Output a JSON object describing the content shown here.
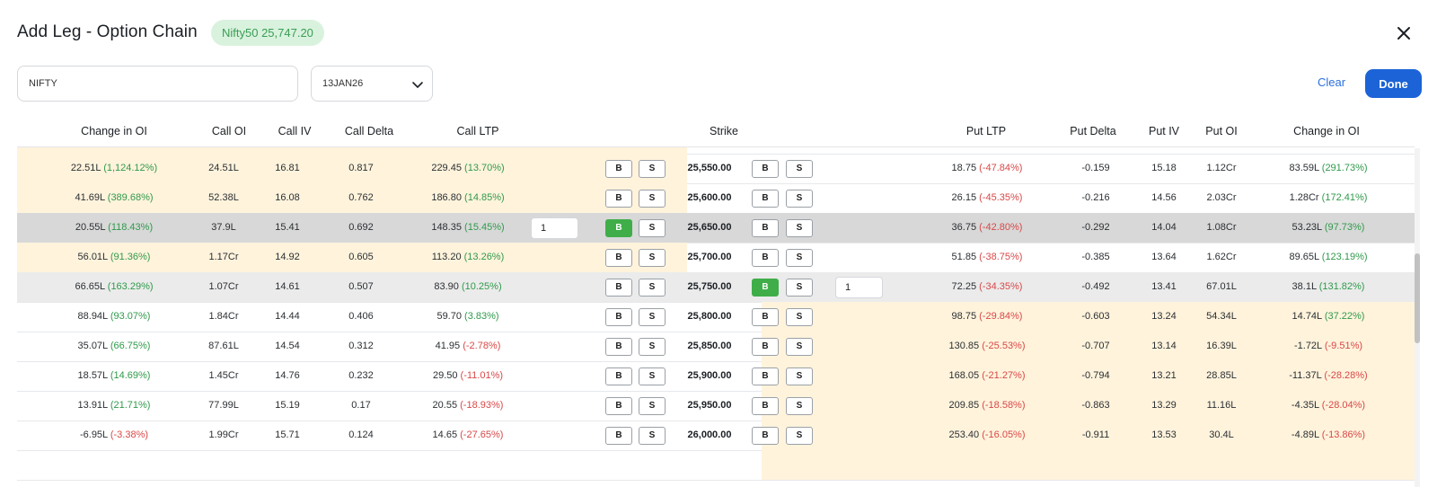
{
  "header": {
    "title": "Add Leg - Option Chain",
    "index_badge": "Nifty50 25,747.20"
  },
  "filters": {
    "symbol": "NIFTY",
    "expiry": "13JAN26"
  },
  "actions": {
    "clear_label": "Clear",
    "done_label": "Done"
  },
  "table": {
    "columns": [
      "Change in OI",
      "Call OI",
      "Call IV",
      "Call Delta",
      "Call LTP",
      "Strike",
      "Put LTP",
      "Put Delta",
      "Put IV",
      "Put OI",
      "Change in OI"
    ],
    "buy_label": "B",
    "sell_label": "S",
    "rows": [
      {
        "call_coi": "22.51L",
        "call_coi_pct": "(1,124.12%)",
        "call_oi": "24.51L",
        "call_iv": "16.81",
        "call_delta": "0.817",
        "call_ltp": "229.45",
        "call_ltp_pct": "(13.70%)",
        "strike": "25,550.00",
        "put_ltp": "18.75",
        "put_ltp_pct": "(-47.84%)",
        "put_delta": "-0.159",
        "put_iv": "15.18",
        "put_oi": "1.12Cr",
        "put_coi": "83.59L",
        "put_coi_pct": "(291.73%)"
      },
      {
        "call_coi": "41.69L",
        "call_coi_pct": "(389.68%)",
        "call_oi": "52.38L",
        "call_iv": "16.08",
        "call_delta": "0.762",
        "call_ltp": "186.80",
        "call_ltp_pct": "(14.85%)",
        "strike": "25,600.00",
        "put_ltp": "26.15",
        "put_ltp_pct": "(-45.35%)",
        "put_delta": "-0.216",
        "put_iv": "14.56",
        "put_oi": "2.03Cr",
        "put_coi": "1.28Cr",
        "put_coi_pct": "(172.41%)"
      },
      {
        "call_coi": "20.55L",
        "call_coi_pct": "(118.43%)",
        "call_oi": "37.9L",
        "call_iv": "15.41",
        "call_delta": "0.692",
        "call_ltp": "148.35",
        "call_ltp_pct": "(15.45%)",
        "strike": "25,650.00",
        "put_ltp": "36.75",
        "put_ltp_pct": "(-42.80%)",
        "put_delta": "-0.292",
        "put_iv": "14.04",
        "put_oi": "1.08Cr",
        "put_coi": "53.23L",
        "put_coi_pct": "(97.73%)",
        "call_qty": "1"
      },
      {
        "call_coi": "56.01L",
        "call_coi_pct": "(91.36%)",
        "call_oi": "1.17Cr",
        "call_iv": "14.92",
        "call_delta": "0.605",
        "call_ltp": "113.20",
        "call_ltp_pct": "(13.26%)",
        "strike": "25,700.00",
        "put_ltp": "51.85",
        "put_ltp_pct": "(-38.75%)",
        "put_delta": "-0.385",
        "put_iv": "13.64",
        "put_oi": "1.62Cr",
        "put_coi": "89.65L",
        "put_coi_pct": "(123.19%)"
      },
      {
        "call_coi": "66.65L",
        "call_coi_pct": "(163.29%)",
        "call_oi": "1.07Cr",
        "call_iv": "14.61",
        "call_delta": "0.507",
        "call_ltp": "83.90",
        "call_ltp_pct": "(10.25%)",
        "strike": "25,750.00",
        "put_ltp": "72.25",
        "put_ltp_pct": "(-34.35%)",
        "put_delta": "-0.492",
        "put_iv": "13.41",
        "put_oi": "67.01L",
        "put_coi": "38.1L",
        "put_coi_pct": "(131.82%)",
        "put_qty": "1"
      },
      {
        "call_coi": "88.94L",
        "call_coi_pct": "(93.07%)",
        "call_oi": "1.84Cr",
        "call_iv": "14.44",
        "call_delta": "0.406",
        "call_ltp": "59.70",
        "call_ltp_pct": "(3.83%)",
        "strike": "25,800.00",
        "put_ltp": "98.75",
        "put_ltp_pct": "(-29.84%)",
        "put_delta": "-0.603",
        "put_iv": "13.24",
        "put_oi": "54.34L",
        "put_coi": "14.74L",
        "put_coi_pct": "(37.22%)"
      },
      {
        "call_coi": "35.07L",
        "call_coi_pct": "(66.75%)",
        "call_oi": "87.61L",
        "call_iv": "14.54",
        "call_delta": "0.312",
        "call_ltp": "41.95",
        "call_ltp_pct": "(-2.78%)",
        "strike": "25,850.00",
        "put_ltp": "130.85",
        "put_ltp_pct": "(-25.53%)",
        "put_delta": "-0.707",
        "put_iv": "13.14",
        "put_oi": "16.39L",
        "put_coi": "-1.72L",
        "put_coi_pct": "(-9.51%)"
      },
      {
        "call_coi": "18.57L",
        "call_coi_pct": "(14.69%)",
        "call_oi": "1.45Cr",
        "call_iv": "14.76",
        "call_delta": "0.232",
        "call_ltp": "29.50",
        "call_ltp_pct": "(-11.01%)",
        "strike": "25,900.00",
        "put_ltp": "168.05",
        "put_ltp_pct": "(-21.27%)",
        "put_delta": "-0.794",
        "put_iv": "13.21",
        "put_oi": "28.85L",
        "put_coi": "-11.37L",
        "put_coi_pct": "(-28.28%)"
      },
      {
        "call_coi": "13.91L",
        "call_coi_pct": "(21.71%)",
        "call_oi": "77.99L",
        "call_iv": "15.19",
        "call_delta": "0.17",
        "call_ltp": "20.55",
        "call_ltp_pct": "(-18.93%)",
        "strike": "25,950.00",
        "put_ltp": "209.85",
        "put_ltp_pct": "(-18.58%)",
        "put_delta": "-0.863",
        "put_iv": "13.29",
        "put_oi": "11.16L",
        "put_coi": "-4.35L",
        "put_coi_pct": "(-28.04%)"
      },
      {
        "call_coi": "-6.95L",
        "call_coi_pct": "(-3.38%)",
        "call_oi": "1.99Cr",
        "call_iv": "15.71",
        "call_delta": "0.124",
        "call_ltp": "14.65",
        "call_ltp_pct": "(-27.65%)",
        "strike": "26,000.00",
        "put_ltp": "253.40",
        "put_ltp_pct": "(-16.05%)",
        "put_delta": "-0.911",
        "put_iv": "13.53",
        "put_oi": "30.4L",
        "put_coi": "-4.89L",
        "put_coi_pct": "(-13.86%)"
      }
    ]
  },
  "colors": {
    "accent": "#1b63d6",
    "itm_bg": "#fff3dc",
    "positive": "#2f9a4b",
    "negative": "#d94848",
    "buy_active": "#3fae49",
    "badge_bg": "#d9f2de"
  },
  "icons": {
    "close": "close-icon",
    "dropdown": "chevron-down-icon"
  }
}
